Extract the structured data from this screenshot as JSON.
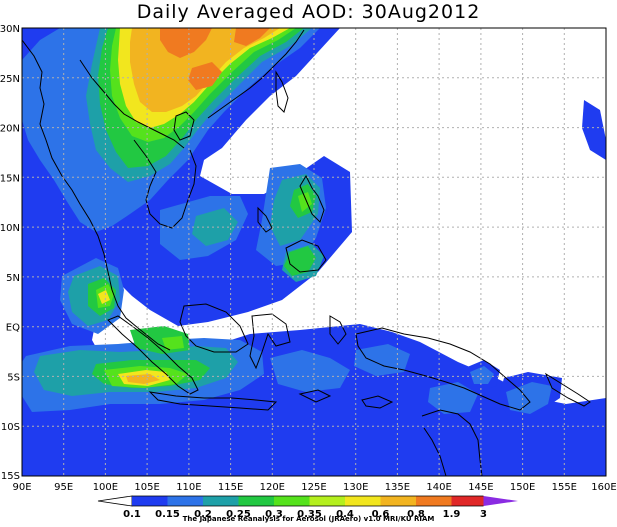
{
  "title": "Daily Averaged AOD: 30Aug2012",
  "credit": "The Japanese Reanalysis for Aerosol (JRAero) v1.0 MRI/KU RIAM",
  "map": {
    "lon_range": [
      90,
      160
    ],
    "lat_range": [
      -15,
      30
    ],
    "lon_ticks": [
      "90E",
      "95E",
      "100E",
      "105E",
      "110E",
      "115E",
      "120E",
      "125E",
      "130E",
      "135E",
      "140E",
      "145E",
      "150E",
      "155E",
      "160E"
    ],
    "lat_ticks": [
      "30N",
      "25N",
      "20N",
      "15N",
      "10N",
      "5N",
      "EQ",
      "5S",
      "10S",
      "15S"
    ]
  },
  "colorbar": {
    "labels": [
      "0.1",
      "0.15",
      "0.2",
      "0.25",
      "0.3",
      "0.35",
      "0.4",
      "0.6",
      "0.8",
      "1.9",
      "3"
    ],
    "colors": [
      "#1f3cf0",
      "#2d73e8",
      "#1ea0a8",
      "#22c842",
      "#55e21c",
      "#b4ef1e",
      "#f2e61e",
      "#f2b420",
      "#f07a20",
      "#e02828",
      "#8a2be2"
    ]
  },
  "contours": {
    "colors": {
      "c1": "#1f3cf0",
      "c2": "#2d73e8",
      "c3": "#1ea0a8",
      "c4": "#22c842",
      "c5": "#55e21c",
      "c6": "#f2e61e",
      "c7": "#f2b420",
      "c8": "#f07a20"
    }
  }
}
